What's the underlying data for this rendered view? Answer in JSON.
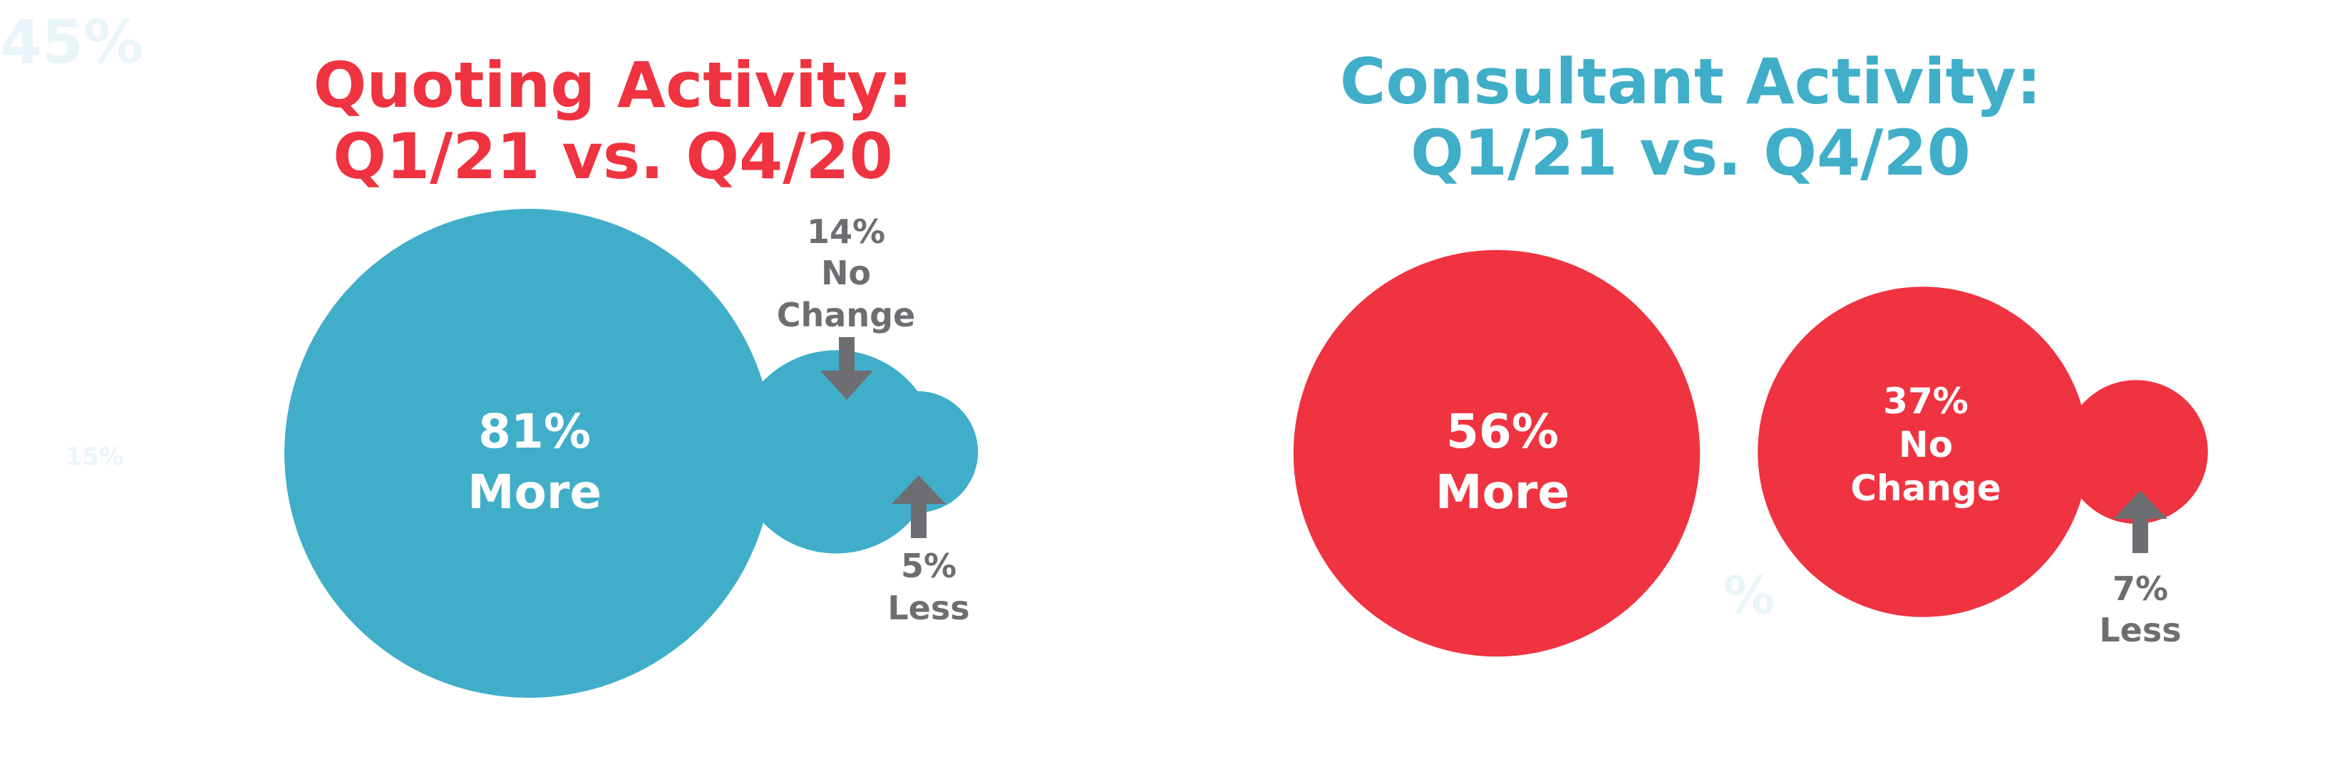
{
  "colors": {
    "teal": "#40aec8",
    "red": "#ef3340",
    "arrow": "#6d6e71",
    "label_gray": "#6d6e71",
    "background": "#ffffff"
  },
  "background_marks": {
    "top_left": "45%",
    "left_mid": "15%"
  },
  "chart_data": [
    {
      "type": "bubble",
      "title_line1": "Quoting Activity:",
      "title_line2": "Q1/21 vs. Q4/20",
      "title_color": "#ef3340",
      "bubble_color": "#40aec8",
      "categories": [
        "More",
        "No Change",
        "Less"
      ],
      "values": [
        81,
        14,
        5
      ],
      "labels": [
        {
          "value": "81%",
          "category": "More"
        },
        {
          "value": "14%",
          "category_line1": "No",
          "category_line2": "Change"
        },
        {
          "value": "5%",
          "category": "Less"
        }
      ]
    },
    {
      "type": "bubble",
      "title_line1": "Consultant Activity:",
      "title_line2": "Q1/21 vs. Q4/20",
      "title_color": "#40aec8",
      "bubble_color": "#ef3340",
      "categories": [
        "More",
        "No Change",
        "Less"
      ],
      "values": [
        56,
        37,
        7
      ],
      "labels": [
        {
          "value": "56%",
          "category": "More"
        },
        {
          "value": "37%",
          "category_line1": "No",
          "category_line2": "Change"
        },
        {
          "value": "7%",
          "category": "Less"
        }
      ]
    }
  ]
}
